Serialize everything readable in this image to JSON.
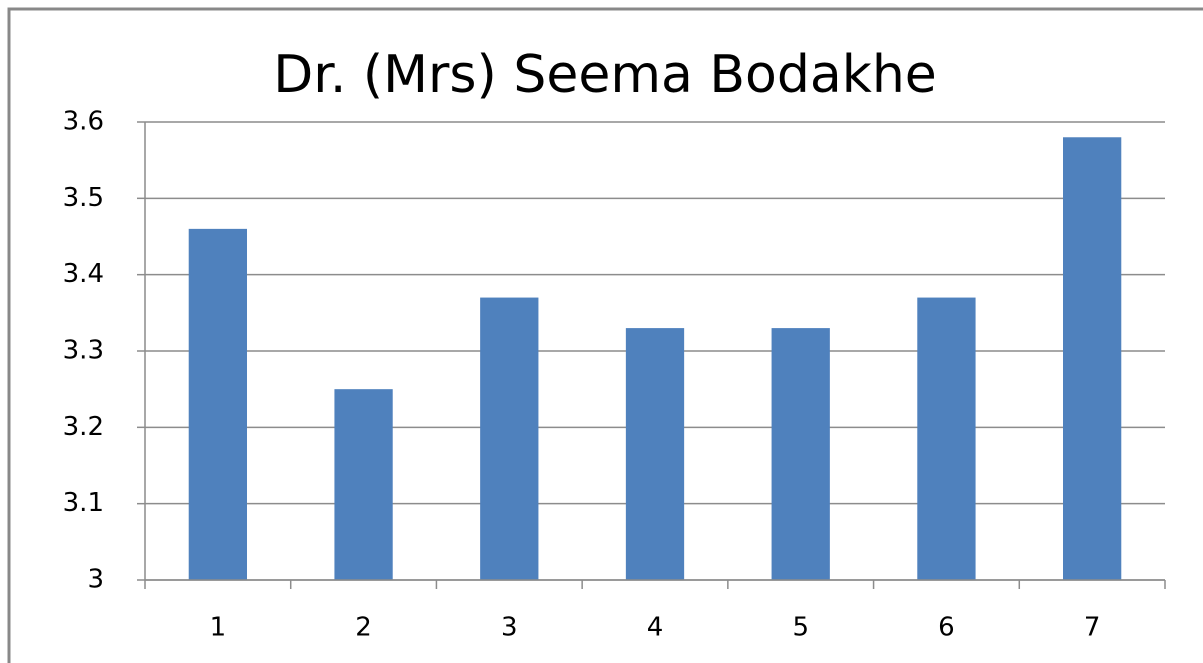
{
  "chart_data": {
    "type": "bar",
    "title": "Dr. (Mrs) Seema Bodakhe",
    "categories": [
      "1",
      "2",
      "3",
      "4",
      "5",
      "6",
      "7"
    ],
    "values": [
      3.46,
      3.25,
      3.37,
      3.33,
      3.33,
      3.37,
      3.58
    ],
    "color": "#4f81bd",
    "ylim": [
      3,
      3.6
    ],
    "yticks": [
      3,
      3.1,
      3.2,
      3.3,
      3.4,
      3.5,
      3.6
    ],
    "grid": true
  }
}
